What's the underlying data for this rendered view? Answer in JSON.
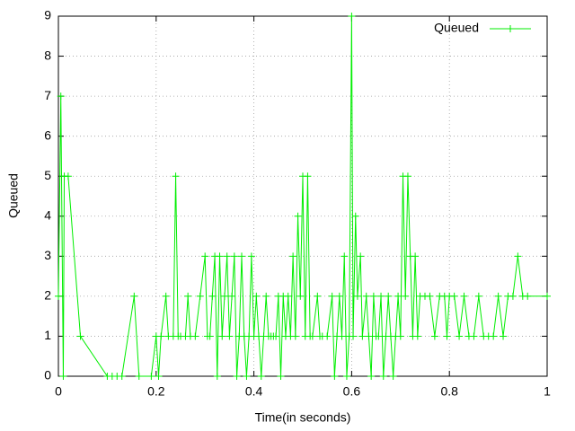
{
  "chart_data": {
    "type": "line",
    "x_label": "Time(in seconds)",
    "y_label": "Queued",
    "x": [
      0,
      0.005,
      0.01,
      0.012,
      0.02,
      0.045,
      0.1,
      0.11,
      0.12,
      0.13,
      0.155,
      0.165,
      0.19,
      0.2,
      0.205,
      0.21,
      0.22,
      0.225,
      0.235,
      0.24,
      0.245,
      0.25,
      0.26,
      0.265,
      0.27,
      0.28,
      0.29,
      0.3,
      0.305,
      0.31,
      0.315,
      0.32,
      0.325,
      0.33,
      0.335,
      0.34,
      0.345,
      0.35,
      0.355,
      0.36,
      0.365,
      0.37,
      0.375,
      0.38,
      0.385,
      0.39,
      0.395,
      0.4,
      0.405,
      0.41,
      0.415,
      0.42,
      0.425,
      0.43,
      0.435,
      0.44,
      0.445,
      0.45,
      0.455,
      0.46,
      0.465,
      0.47,
      0.475,
      0.48,
      0.485,
      0.49,
      0.495,
      0.5,
      0.505,
      0.51,
      0.515,
      0.52,
      0.53,
      0.535,
      0.54,
      0.55,
      0.56,
      0.565,
      0.57,
      0.575,
      0.58,
      0.585,
      0.59,
      0.595,
      0.6,
      0.603,
      0.608,
      0.612,
      0.618,
      0.622,
      0.63,
      0.635,
      0.64,
      0.645,
      0.65,
      0.655,
      0.66,
      0.665,
      0.67,
      0.675,
      0.68,
      0.685,
      0.69,
      0.695,
      0.7,
      0.705,
      0.71,
      0.715,
      0.72,
      0.725,
      0.73,
      0.735,
      0.74,
      0.75,
      0.76,
      0.77,
      0.78,
      0.79,
      0.795,
      0.8,
      0.81,
      0.82,
      0.83,
      0.84,
      0.85,
      0.86,
      0.87,
      0.88,
      0.89,
      0.9,
      0.91,
      0.92,
      0.93,
      0.94,
      0.95,
      0.96,
      1.0
    ],
    "series": [
      {
        "name": "Queued",
        "color": "#00ee00",
        "values": [
          2,
          7,
          0,
          5,
          5,
          1,
          0,
          0,
          0,
          0,
          2,
          0,
          0,
          1,
          0,
          1,
          2,
          1,
          1,
          5,
          1,
          1,
          1,
          2,
          1,
          1,
          2,
          3,
          1,
          1,
          2,
          3,
          0,
          3,
          1,
          2,
          3,
          1,
          2,
          3,
          0,
          1,
          3,
          1,
          0,
          1,
          3,
          1,
          2,
          1,
          0,
          1,
          2,
          1,
          1,
          1,
          1,
          2,
          0,
          2,
          1,
          2,
          1,
          3,
          1,
          4,
          2,
          5,
          1,
          5,
          1,
          1,
          2,
          1,
          1,
          1,
          2,
          0,
          1,
          2,
          1,
          3,
          0,
          1,
          9,
          1,
          4,
          2,
          3,
          1,
          2,
          1,
          0,
          2,
          1,
          1,
          2,
          0,
          1,
          2,
          1,
          0,
          1,
          2,
          1,
          5,
          2,
          5,
          3,
          1,
          3,
          1,
          2,
          2,
          2,
          1,
          2,
          2,
          1,
          2,
          2,
          1,
          2,
          1,
          1,
          2,
          1,
          1,
          1,
          2,
          1,
          2,
          2,
          3,
          2,
          2,
          2
        ]
      }
    ],
    "xlim": [
      0,
      1
    ],
    "xticks": [
      0,
      0.2,
      0.4,
      0.6,
      0.8,
      1
    ],
    "ylim": [
      0,
      9
    ],
    "yticks": [
      0,
      1,
      2,
      3,
      4,
      5,
      6,
      7,
      8,
      9
    ],
    "grid": true,
    "legend": "top-right"
  }
}
